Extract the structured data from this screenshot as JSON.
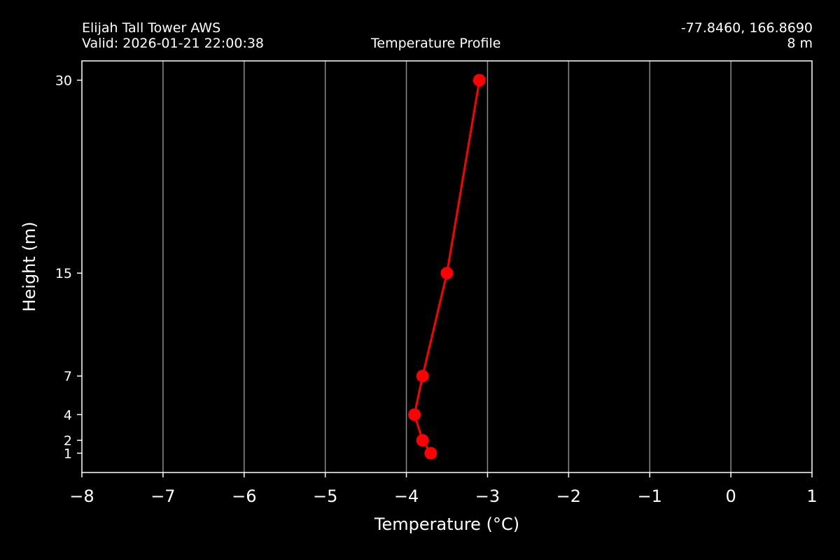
{
  "header": {
    "station": "Elijah Tall Tower AWS",
    "valid": "Valid: 2026-01-21 22:00:38",
    "coords": "-77.8460, 166.8690",
    "elevation": "8 m"
  },
  "chart_data": {
    "type": "line",
    "title": "Temperature Profile",
    "xlabel": "Temperature ($^\\circ$C)",
    "xlabel_display": "Temperature (°C)",
    "ylabel": "Height (m)",
    "xlim": [
      -8,
      1
    ],
    "ylim": [
      -0.5,
      31.5
    ],
    "x_ticks": [
      -8,
      -7,
      -6,
      -5,
      -4,
      -3,
      -2,
      -1,
      0,
      1
    ],
    "x_tick_labels": [
      "−8",
      "−7",
      "−6",
      "−5",
      "−4",
      "−3",
      "−2",
      "−1",
      "0",
      "1"
    ],
    "y_ticks": [
      1,
      2,
      4,
      7,
      15,
      30
    ],
    "y_tick_labels": [
      "1",
      "2",
      "4",
      "7",
      "15",
      "30"
    ],
    "grid": "vertical",
    "series": [
      {
        "color": "#ff0000",
        "x": [
          -3.7,
          -3.8,
          -3.9,
          -3.8,
          -3.5,
          -3.1
        ],
        "y": [
          1,
          2,
          4,
          7,
          15,
          30
        ]
      }
    ]
  },
  "colors": {
    "background": "#000000",
    "foreground": "#ffffff",
    "grid": "#8c8c8c",
    "series": "#ff0000"
  }
}
